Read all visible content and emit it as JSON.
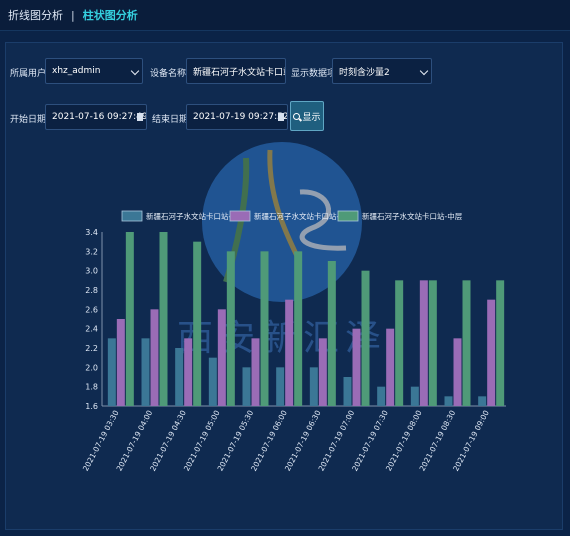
{
  "tabs": [
    {
      "label": "折线图分析",
      "active": false
    },
    {
      "label": "柱状图分析",
      "active": true
    }
  ],
  "tab_separator": "|",
  "filters": {
    "user_label": "所属用户：",
    "user_value": "xhz_admin",
    "device_label": "设备名称：",
    "device_value": "新疆石河子水文站卡口站-...",
    "display_label": "显示数据项：",
    "display_value": "时刻含沙量2",
    "start_label": "开始日期：",
    "start_value": "2021-07-16 09:27:49",
    "end_label": "结束日期：",
    "end_value": "2021-07-19 09:27:52",
    "query_label": "显示"
  },
  "watermark_text": "西安新汇泽",
  "chart_data": {
    "type": "bar",
    "categories": [
      "2021-07-19 03:30",
      "2021-07-19 04:00",
      "2021-07-19 04:30",
      "2021-07-19 05:00",
      "2021-07-19 05:30",
      "2021-07-19 06:00",
      "2021-07-19 06:30",
      "2021-07-19 07:00",
      "2021-07-19 07:30",
      "2021-07-19 08:00",
      "2021-07-19 08:30",
      "2021-07-19 09:00"
    ],
    "series": [
      {
        "name": "新疆石河子水文站卡口站-下层",
        "color": "#3b7796",
        "values": [
          2.3,
          2.3,
          2.2,
          2.1,
          2.0,
          2.0,
          2.0,
          1.9,
          1.8,
          1.8,
          1.7,
          1.7
        ]
      },
      {
        "name": "新疆石河子水文站卡口站-上层",
        "color": "#9a6cb6",
        "values": [
          2.5,
          2.6,
          2.3,
          2.6,
          2.3,
          2.7,
          2.3,
          2.4,
          2.4,
          2.9,
          2.3,
          2.7
        ]
      },
      {
        "name": "新疆石河子水文站卡口站-中层",
        "color": "#4f9a78",
        "values": [
          3.4,
          3.4,
          3.3,
          3.2,
          3.2,
          3.2,
          3.1,
          3.0,
          2.9,
          2.9,
          2.9,
          2.9
        ]
      }
    ],
    "ylim": [
      1.6,
      3.4
    ],
    "yticks": [
      "3.4",
      "3.2",
      "3.0",
      "2.8",
      "2.6",
      "2.4",
      "2.2",
      "2.0",
      "1.8",
      "1.6"
    ],
    "legend_position": "top",
    "grid": false
  }
}
